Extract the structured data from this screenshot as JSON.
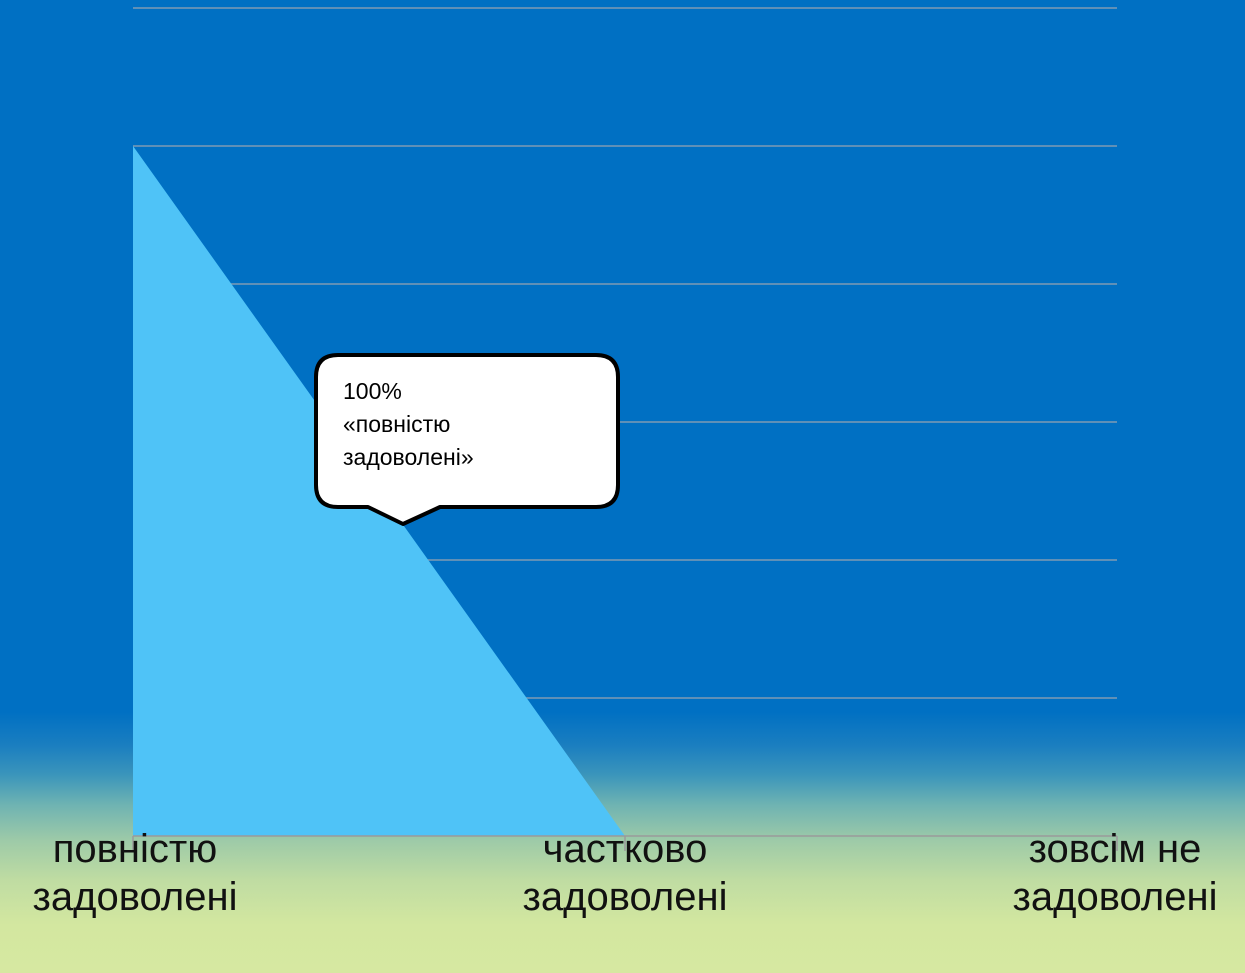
{
  "chart_data": {
    "type": "area",
    "categories": [
      "повністю\nзадоволені",
      "частково\nзадоволені",
      "зовсім не\nзадоволені"
    ],
    "values": [
      100,
      0,
      0
    ],
    "ylim": [
      0,
      120
    ],
    "grid": true,
    "colors": {
      "area": "#4fc3f7",
      "gridline": "#7f9bb3",
      "axis": "#9a9a9a",
      "plot_background": "#0070c3"
    },
    "callout": {
      "lines": [
        "100%",
        "«повністю",
        "задоволені»"
      ],
      "category": "повністю\nзадоволені"
    }
  }
}
